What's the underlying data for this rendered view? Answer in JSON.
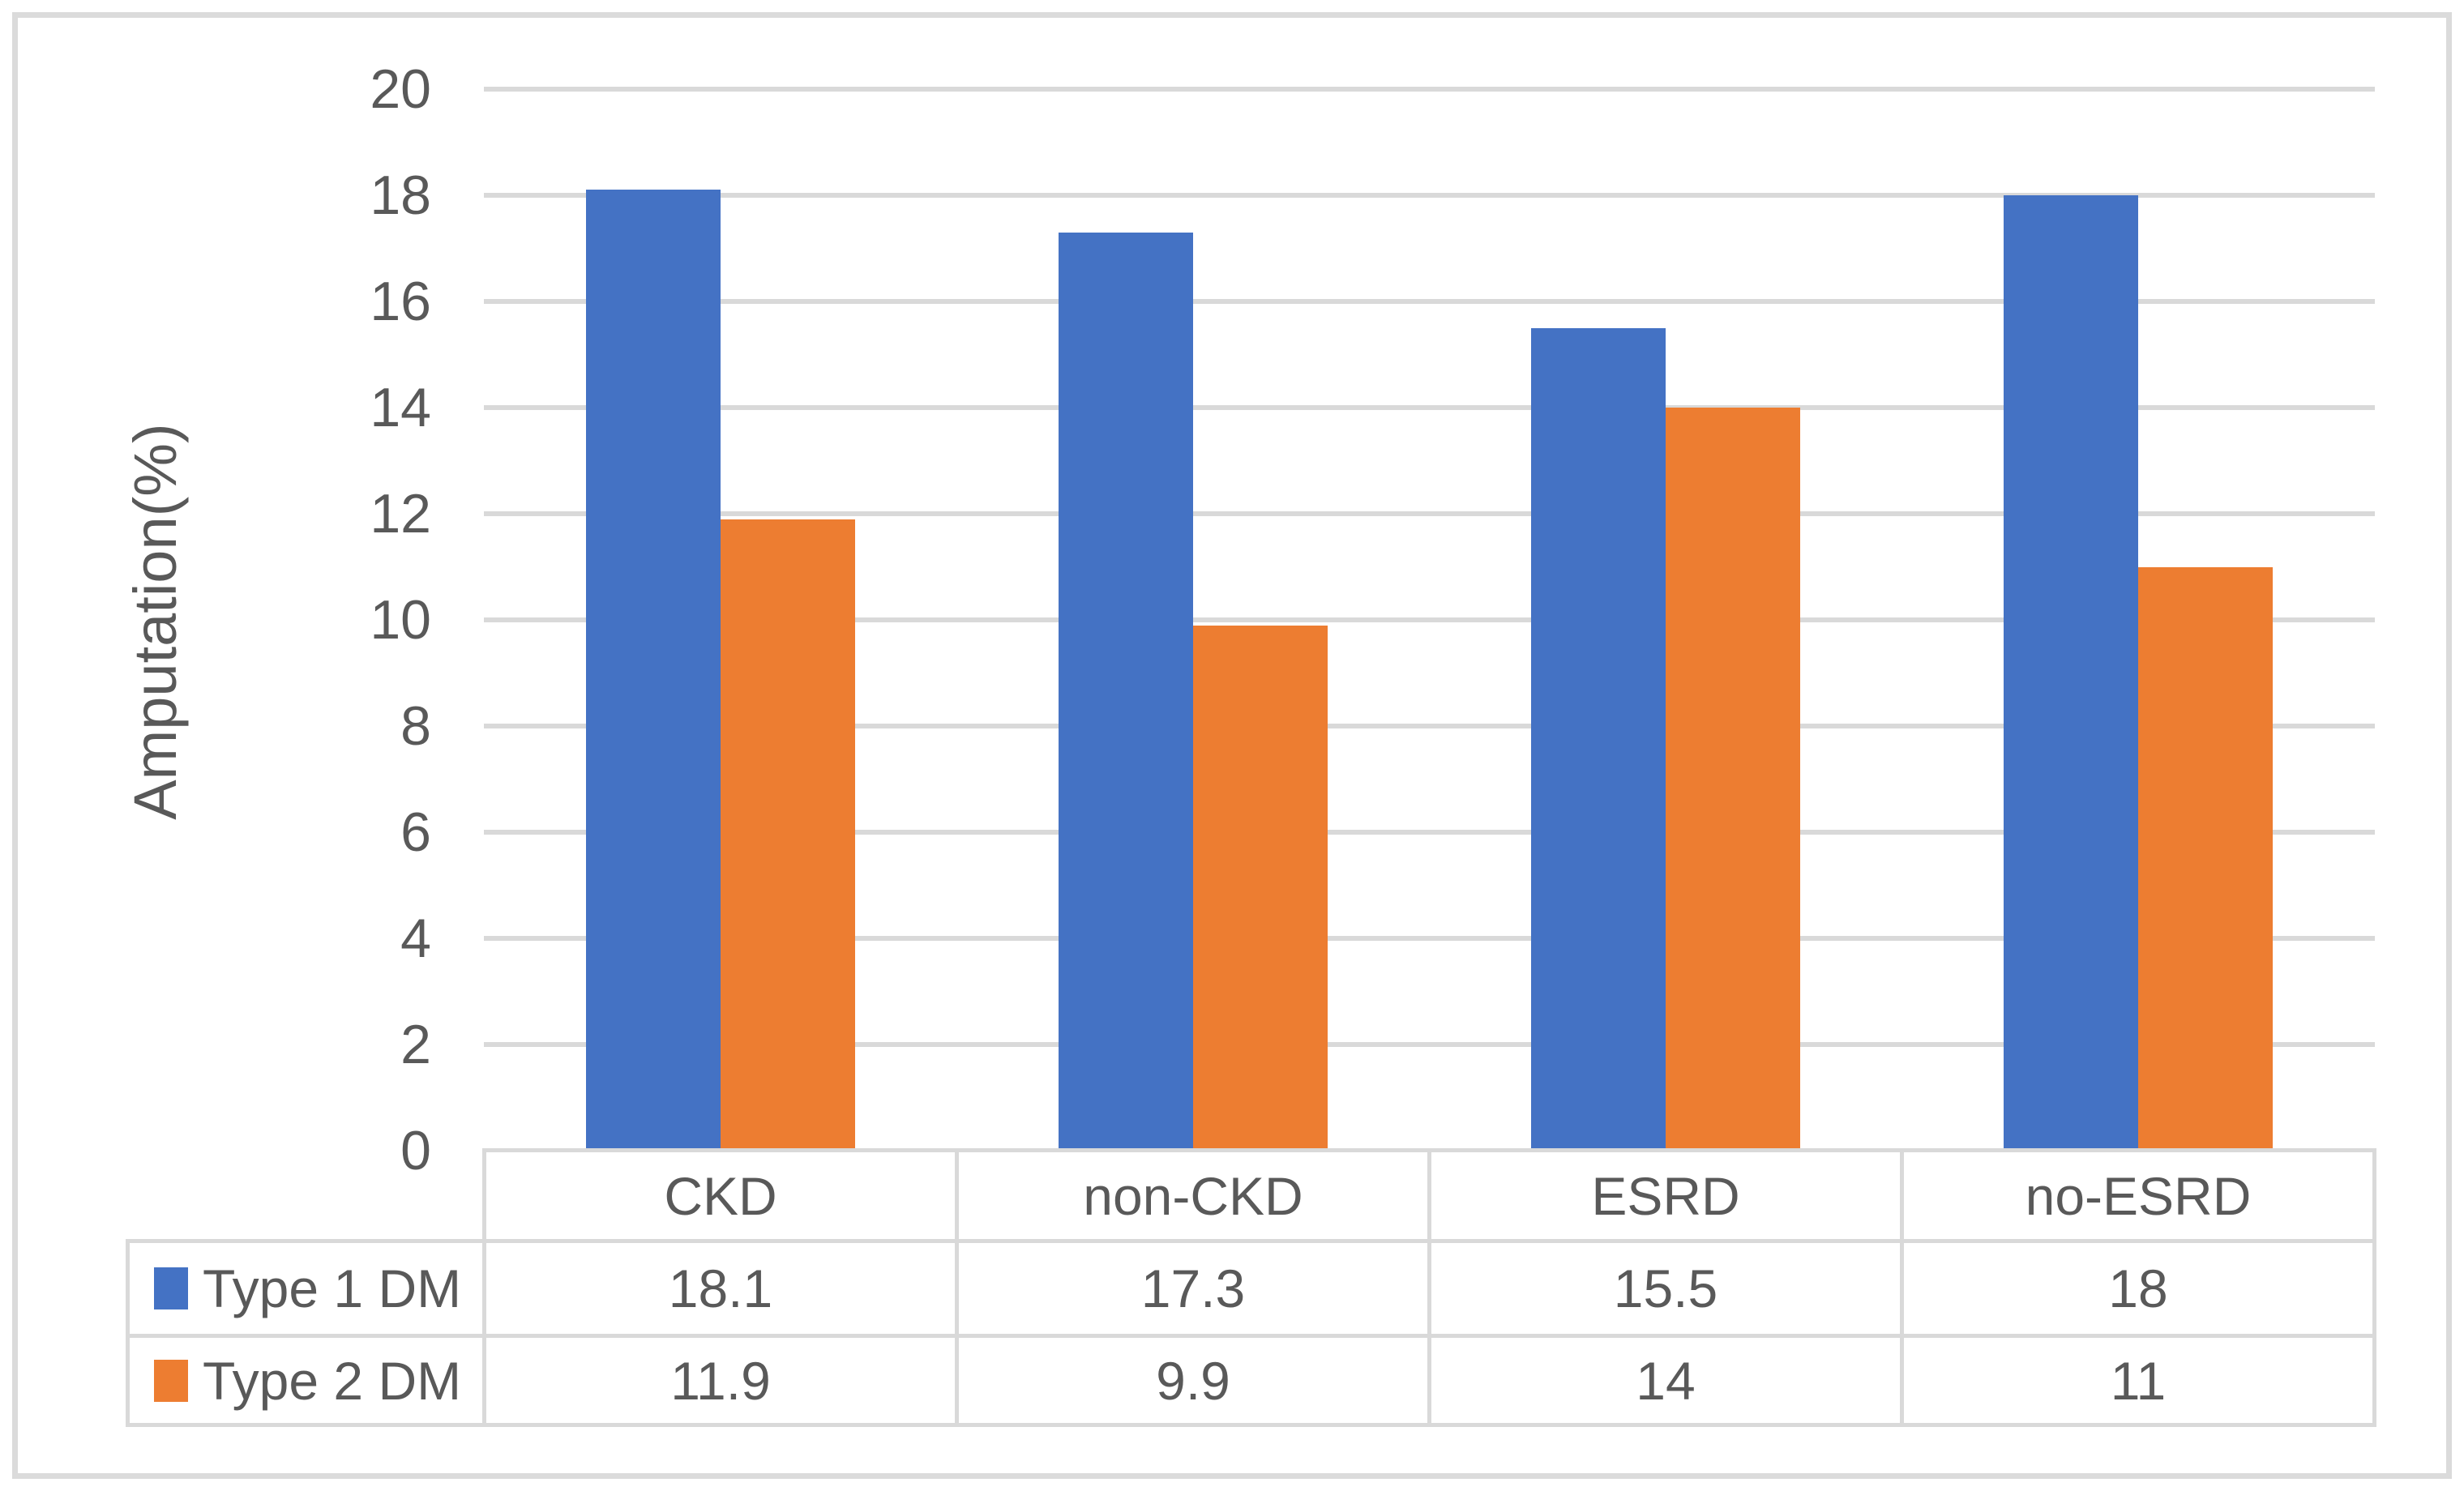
{
  "figure": {
    "background": "#FFFFFF",
    "border_color": "#DBDBDB"
  },
  "chart_data": {
    "type": "bar",
    "title": "",
    "xlabel": "",
    "ylabel": "Amputation(%)",
    "categories": [
      "CKD",
      "non-CKD",
      "ESRD",
      "no-ESRD"
    ],
    "series": [
      {
        "name": "Type 1 DM",
        "color": "#4472C4",
        "values": [
          18.1,
          17.3,
          15.5,
          18
        ]
      },
      {
        "name": "Type 2 DM",
        "color": "#ED7D31",
        "values": [
          11.9,
          9.9,
          14,
          11
        ]
      }
    ],
    "ylim": [
      0,
      20
    ],
    "ytick_step": 2,
    "yticks": [
      0,
      2,
      4,
      6,
      8,
      10,
      12,
      14,
      16,
      18,
      20
    ],
    "grid": true,
    "legend_position": "data-table-left",
    "text_color": "#595959",
    "gridline_color": "#D9D9D9"
  }
}
